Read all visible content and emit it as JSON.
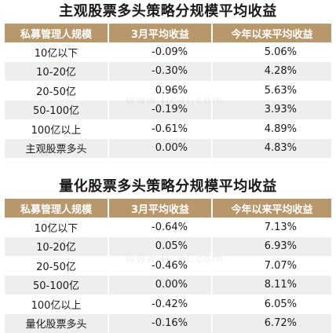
{
  "tables": [
    {
      "title": "主观股票多头策略分规模平均收益",
      "headers": [
        "私募管理人规模",
        "3月平均收益",
        "今年以来平均收益"
      ],
      "rows": [
        {
          "scale": "10亿以下",
          "march": "-0.09%",
          "ytd": "5.06%"
        },
        {
          "scale": "10-20亿",
          "march": "-0.30%",
          "ytd": "4.28%"
        },
        {
          "scale": "20-50亿",
          "march": "0.96%",
          "ytd": "5.63%"
        },
        {
          "scale": "50-100亿",
          "march": "-0.19%",
          "ytd": "3.93%"
        },
        {
          "scale": "100亿以上",
          "march": "-0.61%",
          "ytd": "4.89%"
        },
        {
          "scale": "主观股票多头",
          "march": "0.00%",
          "ytd": "4.83%"
        }
      ]
    },
    {
      "title": "量化股票多头策略分规模平均收益",
      "headers": [
        "私募管理人规模",
        "3月平均收益",
        "今年以来平均收益"
      ],
      "rows": [
        {
          "scale": "10亿以下",
          "march": "-0.64%",
          "ytd": "7.13%"
        },
        {
          "scale": "10-20亿",
          "march": "0.05%",
          "ytd": "6.93%"
        },
        {
          "scale": "20-50亿",
          "march": "-0.46%",
          "ytd": "7.07%"
        },
        {
          "scale": "50-100亿",
          "march": "0.00%",
          "ytd": "8.11%"
        },
        {
          "scale": "100亿以上",
          "march": "-0.42%",
          "ytd": "6.05%"
        },
        {
          "scale": "量化股票多头",
          "march": "-0.16%",
          "ytd": "6.72%"
        }
      ]
    }
  ],
  "watermark": "www.licai.com",
  "colors": {
    "header_bg": "#b8976a",
    "header_text": "#ffffff",
    "stripe": "#eeeeee"
  }
}
